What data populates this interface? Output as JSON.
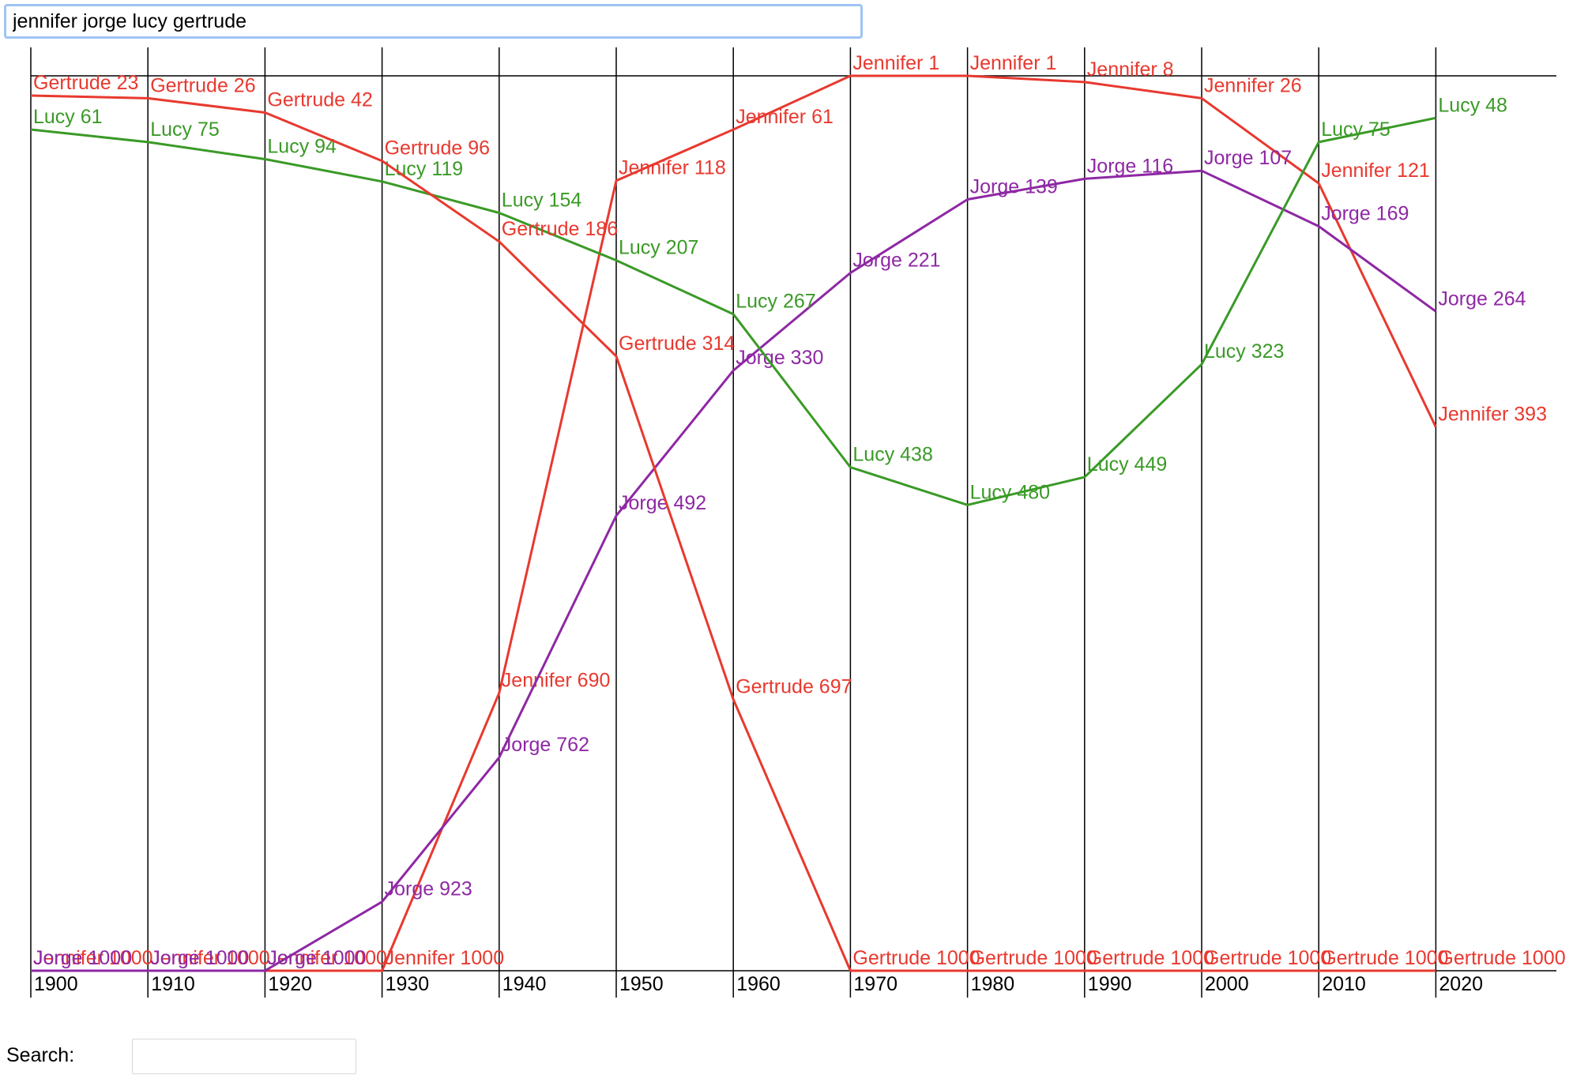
{
  "query": {
    "value": "jennifer jorge lucy gertrude"
  },
  "search": {
    "label": "Search:",
    "value": "",
    "placeholder": ""
  },
  "chart_data": {
    "type": "line",
    "x": [
      1900,
      1910,
      1920,
      1930,
      1940,
      1950,
      1960,
      1970,
      1980,
      1990,
      2000,
      2010,
      2020
    ],
    "y_axis": "rank",
    "ylim": [
      1,
      1000
    ],
    "ydirection": "inverted",
    "grid": "vertical",
    "legend": "none",
    "series": [
      {
        "name": "Jennifer",
        "color": "#e8392f",
        "values": [
          1000,
          1000,
          1000,
          1000,
          690,
          118,
          61,
          1,
          1,
          8,
          26,
          121,
          393
        ]
      },
      {
        "name": "Jorge",
        "color": "#8e28a4",
        "values": [
          1000,
          1000,
          1000,
          923,
          762,
          492,
          330,
          221,
          139,
          116,
          107,
          169,
          264
        ]
      },
      {
        "name": "Lucy",
        "color": "#3a9a27",
        "values": [
          61,
          75,
          94,
          119,
          154,
          207,
          267,
          438,
          480,
          449,
          323,
          75,
          48
        ]
      },
      {
        "name": "Gertrude",
        "color": "#e8392f",
        "values": [
          23,
          26,
          42,
          96,
          186,
          314,
          697,
          1000,
          1000,
          1000,
          1000,
          1000,
          1000
        ]
      }
    ]
  }
}
